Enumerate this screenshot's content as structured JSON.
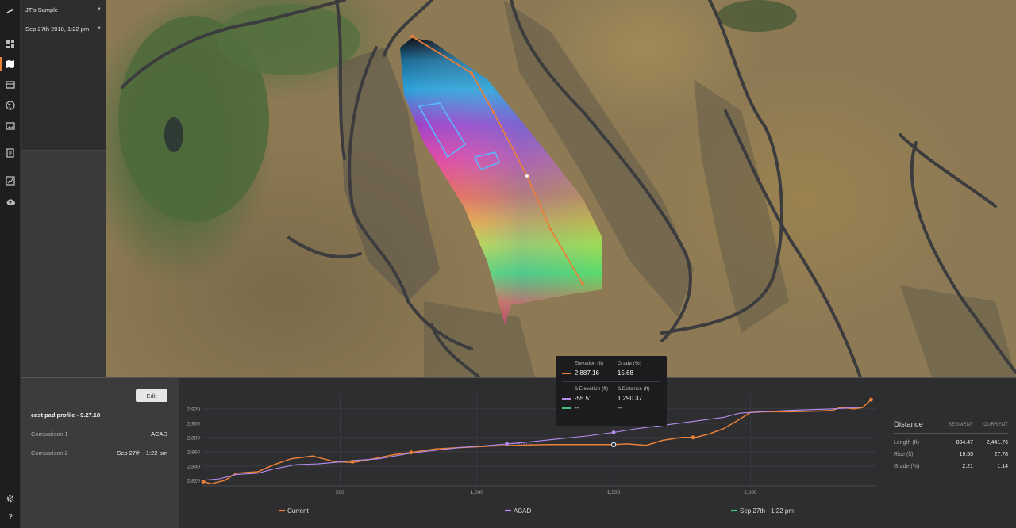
{
  "app": {
    "logo": "wing-logo-icon"
  },
  "rail": {
    "items": [
      {
        "name": "dashboard-icon"
      },
      {
        "name": "map-icon"
      },
      {
        "name": "layers-icon"
      },
      {
        "name": "globe-icon"
      },
      {
        "name": "image-icon"
      },
      {
        "name": "report-icon"
      },
      {
        "name": "chart-icon"
      },
      {
        "name": "upload-icon"
      }
    ],
    "bottom": [
      {
        "name": "settings-icon"
      },
      {
        "name": "help-icon",
        "label": "?"
      }
    ]
  },
  "project": {
    "name": "JT's Sample",
    "date": "Sep 27th 2018, 1:22 pm"
  },
  "profile": {
    "edit_label": "Edit",
    "name": "east pad profile - 9.27.18",
    "comparisons": [
      {
        "label": "Comparison 1",
        "value": "ACAD"
      },
      {
        "label": "Comparison 2",
        "value": "Sep 27th - 1:22 pm"
      }
    ]
  },
  "tooltip": {
    "elevation_label": "Elevation (ft)",
    "grade_label": "Grade (%)",
    "elevation_value": "2,887.16",
    "grade_value": "15.68",
    "delta_elevation_label": "Δ Elevation (ft)",
    "delta_distance_label": "Δ Distance (ft)",
    "acad_delta_elevation": "-55.51",
    "acad_delta_distance": "1,290.37",
    "sep_delta_elevation": "--",
    "sep_delta_distance": "--",
    "colors": {
      "current": "#e8803a",
      "acad": "#b48cf0",
      "sep": "#3ec27e"
    }
  },
  "stats": {
    "title": "Distance",
    "col_segment": "SEGMENT",
    "col_current": "CURRENT",
    "rows": [
      {
        "label": "Length (ft)",
        "segment": "884.47",
        "current": "2,441.76"
      },
      {
        "label": "Rise (ft)",
        "segment": "19.55",
        "current": "27.78"
      },
      {
        "label": "Grade (%)",
        "segment": "2.21",
        "current": "1.14"
      }
    ]
  },
  "chart_data": {
    "type": "line",
    "xlabel": "",
    "ylabel": "",
    "xlim": [
      0,
      2460
    ],
    "ylim": [
      2812,
      2932
    ],
    "x_ticks": [
      500,
      1000,
      1500,
      2000
    ],
    "x_tick_labels": [
      "500",
      "1,000",
      "1,500",
      "2,000"
    ],
    "y_ticks": [
      2820,
      2840,
      2860,
      2880,
      2900,
      2920
    ],
    "y_tick_labels": [
      "2,820",
      "2,840",
      "2,860",
      "2,880",
      "2,900",
      "2,920"
    ],
    "grid": true,
    "legend_position": "bottom",
    "series": [
      {
        "name": "Current",
        "color": "#e8803a",
        "points": [
          [
            0,
            2818
          ],
          [
            30,
            2815
          ],
          [
            80,
            2820
          ],
          [
            120,
            2830
          ],
          [
            200,
            2832
          ],
          [
            260,
            2842
          ],
          [
            320,
            2850
          ],
          [
            400,
            2854
          ],
          [
            440,
            2850
          ],
          [
            480,
            2846
          ],
          [
            550,
            2845
          ],
          [
            620,
            2850
          ],
          [
            700,
            2856
          ],
          [
            760,
            2859
          ],
          [
            850,
            2864
          ],
          [
            950,
            2866
          ],
          [
            1050,
            2868
          ],
          [
            1150,
            2869
          ],
          [
            1250,
            2870
          ],
          [
            1350,
            2870
          ],
          [
            1450,
            2870
          ],
          [
            1500,
            2870
          ],
          [
            1550,
            2871
          ],
          [
            1620,
            2869
          ],
          [
            1680,
            2876
          ],
          [
            1750,
            2880
          ],
          [
            1800,
            2880
          ],
          [
            1850,
            2885
          ],
          [
            1900,
            2892
          ],
          [
            1950,
            2903
          ],
          [
            2000,
            2915
          ],
          [
            2050,
            2916
          ],
          [
            2150,
            2916
          ],
          [
            2250,
            2917
          ],
          [
            2300,
            2918
          ],
          [
            2330,
            2922
          ],
          [
            2380,
            2920
          ],
          [
            2410,
            2922
          ],
          [
            2441,
            2933
          ]
        ]
      },
      {
        "name": "ACAD",
        "color": "#b48cf0",
        "points": [
          [
            0,
            2820
          ],
          [
            60,
            2822
          ],
          [
            120,
            2828
          ],
          [
            200,
            2830
          ],
          [
            260,
            2836
          ],
          [
            340,
            2842
          ],
          [
            420,
            2843
          ],
          [
            480,
            2845
          ],
          [
            560,
            2848
          ],
          [
            640,
            2850
          ],
          [
            760,
            2858
          ],
          [
            850,
            2862
          ],
          [
            940,
            2866
          ],
          [
            1020,
            2868
          ],
          [
            1110,
            2871
          ],
          [
            1200,
            2874
          ],
          [
            1300,
            2878
          ],
          [
            1400,
            2882
          ],
          [
            1500,
            2887
          ],
          [
            1580,
            2892
          ],
          [
            1660,
            2896
          ],
          [
            1740,
            2900
          ],
          [
            1820,
            2904
          ],
          [
            1900,
            2908
          ],
          [
            1960,
            2914
          ],
          [
            2040,
            2916
          ],
          [
            2150,
            2918
          ],
          [
            2300,
            2920
          ],
          [
            2400,
            2922
          ]
        ]
      },
      {
        "name": "Sep 27th - 1:22 pm",
        "color": "#3ec27e",
        "points": []
      }
    ],
    "markers": [
      {
        "series": "Current",
        "x": 0,
        "y": 2818
      },
      {
        "series": "Current",
        "x": 545,
        "y": 2846
      },
      {
        "series": "Current",
        "x": 760,
        "y": 2859
      },
      {
        "series": "Current",
        "x": 1500,
        "y": 2870
      },
      {
        "series": "Current",
        "x": 1790,
        "y": 2880
      },
      {
        "series": "Current",
        "x": 2441,
        "y": 2933
      },
      {
        "series": "ACAD",
        "x": 1110,
        "y": 2871
      },
      {
        "series": "ACAD",
        "x": 1500,
        "y": 2887
      }
    ],
    "cursor_x": 1500
  }
}
